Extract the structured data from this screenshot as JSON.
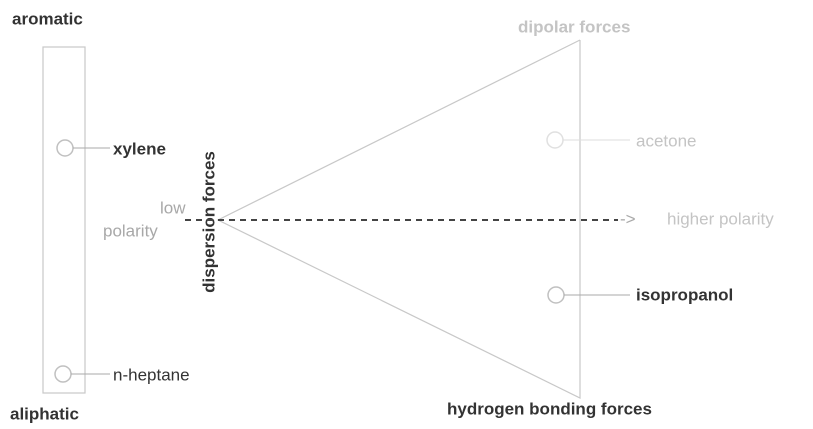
{
  "left_scale": {
    "top_label": "aromatic",
    "bottom_label": "aliphatic",
    "axis_label": "dispersion forces"
  },
  "left_items": [
    {
      "label": "xylene"
    },
    {
      "label": "n-heptane"
    }
  ],
  "triangle": {
    "top_label": "dipolar forces",
    "bottom_label": "hydrogen bonding forces"
  },
  "right_items": [
    {
      "label": "acetone"
    },
    {
      "label": "isopropanol"
    }
  ],
  "polarity_axis": {
    "start_label_line1": "low",
    "start_label_line2": "polarity",
    "arrow": "->",
    "end_label": "higher polarity"
  }
}
